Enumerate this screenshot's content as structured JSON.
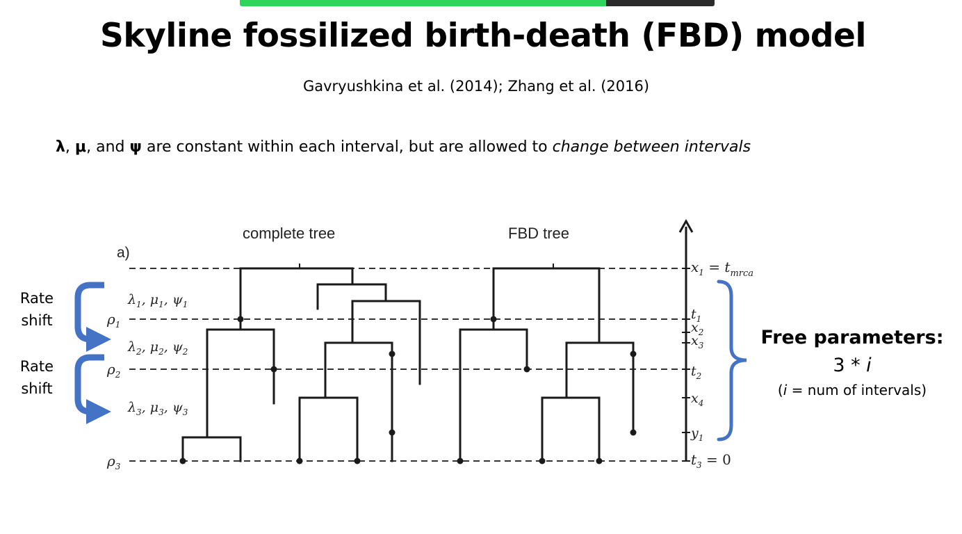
{
  "slide": {
    "title": "Skyline fossilized birth-death (FBD) model",
    "citation": "Gavryushkina et al. (2014); Zhang et al. (2016)",
    "statement": {
      "lambda": "λ",
      "sep1": ", ",
      "mu": "μ",
      "sep2": ", and ",
      "psi": "ψ",
      "middle": " are constant within each interval, but are allowed to ",
      "emphasis": "change between intervals"
    }
  },
  "rate_shifts": [
    {
      "line1": "Rate",
      "line2": "shift"
    },
    {
      "line1": "Rate",
      "line2": "shift"
    }
  ],
  "free_parameters": {
    "heading": "Free parameters:",
    "formula_number": "3 * ",
    "formula_var": "i",
    "note_var": "i",
    "note_rest": " = num of intervals)",
    "note_open": "("
  },
  "diagram": {
    "panel_label": "a)",
    "tree_titles": {
      "complete": "complete tree",
      "fbd": "FBD tree"
    },
    "interval_params": [
      {
        "lambda": "λ",
        "lsub": "1",
        "mu": "μ",
        "msub": "1",
        "psi": "ψ",
        "psub": "1"
      },
      {
        "lambda": "λ",
        "lsub": "2",
        "mu": "μ",
        "msub": "2",
        "psi": "ψ",
        "psub": "2"
      },
      {
        "lambda": "λ",
        "lsub": "3",
        "mu": "μ",
        "msub": "3",
        "psi": "ψ",
        "psub": "3"
      }
    ],
    "rho_labels": [
      {
        "sym": "ρ",
        "sub": "1"
      },
      {
        "sym": "ρ",
        "sub": "2"
      },
      {
        "sym": "ρ",
        "sub": "3"
      }
    ],
    "axis_labels": {
      "x1": {
        "sym": "x",
        "sub": "1",
        "eq": " = ",
        "t": "t",
        "tsub": "mrca"
      },
      "t1": {
        "sym": "t",
        "sub": "1"
      },
      "x2": {
        "sym": "x",
        "sub": "2"
      },
      "x3": {
        "sym": "x",
        "sub": "3"
      },
      "t2": {
        "sym": "t",
        "sub": "2"
      },
      "x4": {
        "sym": "x",
        "sub": "4"
      },
      "y1": {
        "sym": "y",
        "sub": "1"
      },
      "t3": {
        "sym": "t",
        "sub": "3",
        "eq": " = 0"
      }
    }
  },
  "colors": {
    "accent_blue": "#4472c4",
    "share_green": "#2fd45a",
    "tree_line": "#1a1a1a"
  }
}
